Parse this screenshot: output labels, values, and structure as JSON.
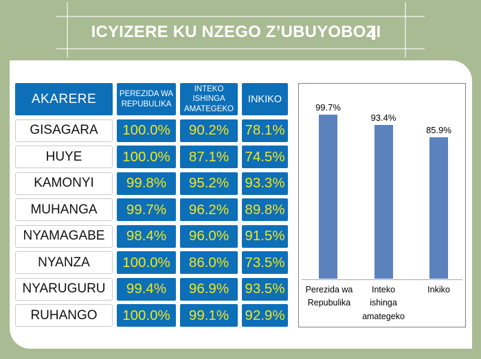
{
  "title": "ICYIZERE KU NZEGO Z’UBUYOBOZI",
  "table": {
    "district_header": "AKARERE",
    "column_headers": [
      "PEREZIDA WA REPUBULIKA",
      "INTEKO ISHINGA AMATEGEKO",
      "INKIKO"
    ],
    "rows": [
      {
        "district": "GISAGARA",
        "values": [
          "100.0%",
          "90.2%",
          "78.1%"
        ]
      },
      {
        "district": "HUYE",
        "values": [
          "100.0%",
          "87.1%",
          "74.5%"
        ]
      },
      {
        "district": "KAMONYI",
        "values": [
          "99.8%",
          "95.2%",
          "93.3%"
        ]
      },
      {
        "district": "MUHANGA",
        "values": [
          "99.7%",
          "96.2%",
          "89.8%"
        ]
      },
      {
        "district": "NYAMAGABE",
        "values": [
          "98.4%",
          "96.0%",
          "91.5%"
        ]
      },
      {
        "district": "NYANZA",
        "values": [
          "100.0%",
          "86.0%",
          "73.5%"
        ]
      },
      {
        "district": "NYARUGURU",
        "values": [
          "99.4%",
          "96.9%",
          "93.5%"
        ]
      },
      {
        "district": "RUHANGO",
        "values": [
          "100.0%",
          "99.1%",
          "92.9%"
        ]
      }
    ]
  },
  "chart_data": {
    "type": "bar",
    "categories": [
      "Perezida wa Repubulika",
      "Inteko ishinga amategeko",
      "Inkiko"
    ],
    "values": [
      99.7,
      93.4,
      85.9
    ],
    "data_labels": [
      "99.7%",
      "93.4%",
      "85.9%"
    ],
    "title": "",
    "xlabel": "",
    "ylabel": "",
    "ylim": [
      0,
      110
    ],
    "grid": false,
    "legend": false,
    "bar_color": "#5b82bd"
  },
  "colors": {
    "background_green": "#a9bb92",
    "cell_blue": "#0d6fb8",
    "value_yellow": "#f2e71c",
    "bar_blue": "#5b82bd",
    "chart_border_gray": "#7f7f7f",
    "title_white": "#ffffff"
  }
}
